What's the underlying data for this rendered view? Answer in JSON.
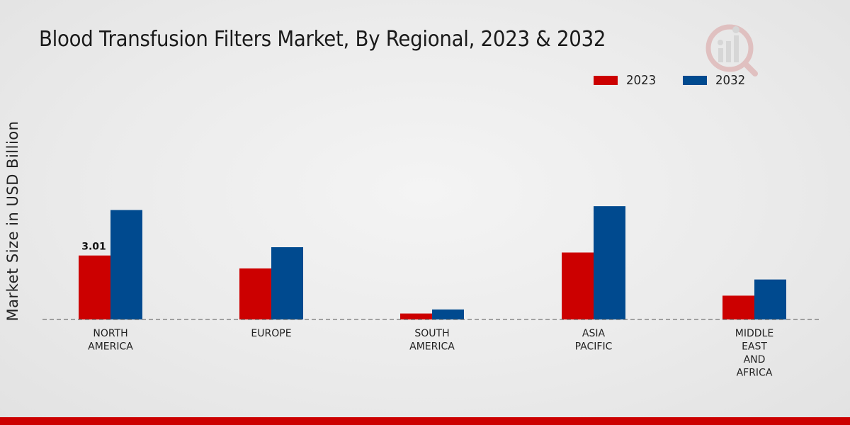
{
  "header": {
    "title": "Blood Transfusion Filters Market, By Regional, 2023 & 2032"
  },
  "colors": {
    "series_2023": "#cc0000",
    "series_2032": "#004a8f",
    "footer": "#cc0000"
  },
  "icons": {
    "logo": "market-research-logo-icon"
  },
  "chart_data": {
    "type": "bar",
    "title": "Blood Transfusion Filters Market, By Regional, 2023 & 2032",
    "xlabel": "",
    "ylabel": "Market Size in USD Billion",
    "categories": [
      [
        "NORTH",
        "AMERICA"
      ],
      [
        "EUROPE"
      ],
      [
        "SOUTH",
        "AMERICA"
      ],
      [
        "ASIA",
        "PACIFIC"
      ],
      [
        "MIDDLE",
        "EAST",
        "AND",
        "AFRICA"
      ]
    ],
    "series": [
      {
        "name": "2023",
        "values": [
          3.01,
          2.4,
          0.28,
          3.15,
          1.12
        ]
      },
      {
        "name": "2032",
        "values": [
          5.15,
          3.4,
          0.47,
          5.33,
          1.88
        ]
      }
    ],
    "data_labels": [
      {
        "series": 0,
        "index": 0,
        "text": "3.01"
      }
    ],
    "ylim": [
      0,
      9.2
    ],
    "grid": false,
    "baseline": "dashed",
    "legend_position": "top-right"
  }
}
